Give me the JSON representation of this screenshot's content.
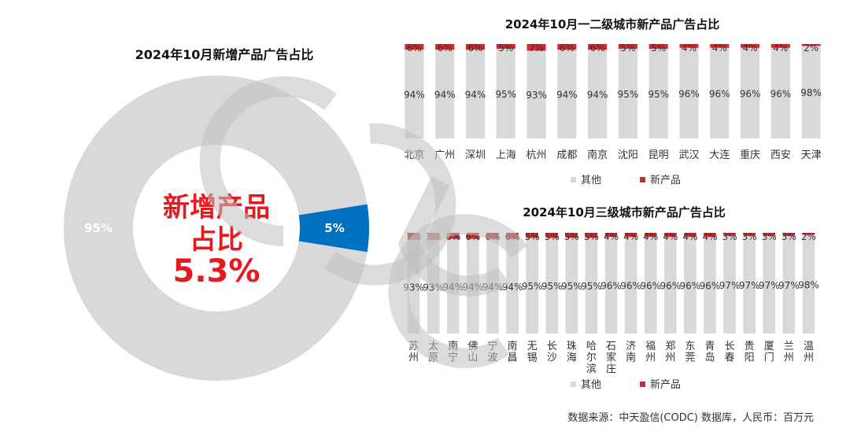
{
  "colors": {
    "other": "#d9d9d9",
    "new_product_bar": "#d9262c",
    "new_product_donut": "#0070c0",
    "center_text": "#e8181e",
    "title": "#111111",
    "label": "#333333",
    "donut_label_light": "#ffffff",
    "watermark": "#bfbfbf"
  },
  "watermark": {
    "text": "CODC"
  },
  "source": "数据来源：中天盈信(CODC) 数据库，人民币：百万元",
  "chart_data": [
    {
      "type": "pie",
      "title": "2024年10月新增产品广告占比",
      "center_text": {
        "line1": "新增产品",
        "line2": "占比",
        "value": "5.3%"
      },
      "categories": [
        "其他",
        "新产品"
      ],
      "values": [
        95,
        5
      ],
      "data_labels": [
        "95%",
        "5%"
      ]
    },
    {
      "type": "bar",
      "stacked": true,
      "title": "2024年10月一二级城市新产品广告占比",
      "categories": [
        "北京",
        "广州",
        "深圳",
        "上海",
        "杭州",
        "成都",
        "南京",
        "沈阳",
        "昆明",
        "武汉",
        "大连",
        "重庆",
        "西安",
        "天津"
      ],
      "series": [
        {
          "name": "其他",
          "values": [
            94,
            94,
            94,
            95,
            93,
            94,
            94,
            95,
            95,
            96,
            96,
            96,
            96,
            98
          ],
          "labels": [
            "94%",
            "94%",
            "94%",
            "95%",
            "93%",
            "94%",
            "94%",
            "95%",
            "95%",
            "96%",
            "96%",
            "96%",
            "96%",
            "98%"
          ]
        },
        {
          "name": "新产品",
          "values": [
            6,
            6,
            6,
            5,
            7,
            6,
            6,
            5,
            5,
            4,
            4,
            4,
            4,
            2
          ],
          "labels": [
            "6%",
            "6%",
            "6%",
            "5%",
            "7%",
            "6%",
            "6%",
            "5%",
            "5%",
            "4%",
            "4%",
            "4%",
            "4%",
            "2%"
          ]
        }
      ],
      "ylim": [
        0,
        100
      ],
      "legend_position": "bottom"
    },
    {
      "type": "bar",
      "stacked": true,
      "title": "2024年10月三级城市新产品广告占比",
      "categories": [
        "苏州",
        "太原",
        "南宁",
        "佛山",
        "宁波",
        "南昌",
        "无锡",
        "长沙",
        "珠海",
        "哈尔滨",
        "石家庄",
        "济南",
        "福州",
        "郑州",
        "东莞",
        "青岛",
        "长春",
        "贵阳",
        "厦门",
        "兰州",
        "温州"
      ],
      "series": [
        {
          "name": "其他",
          "values": [
            93,
            93,
            94,
            94,
            94,
            94,
            95,
            95,
            95,
            95,
            96,
            96,
            96,
            96,
            96,
            96,
            97,
            97,
            97,
            97,
            98
          ],
          "labels": [
            "93%",
            "93%",
            "94%",
            "94%",
            "94%",
            "94%",
            "95%",
            "95%",
            "95%",
            "95%",
            "96%",
            "96%",
            "96%",
            "96%",
            "96%",
            "96%",
            "97%",
            "97%",
            "97%",
            "97%",
            "98%"
          ]
        },
        {
          "name": "新产品",
          "values": [
            7,
            7,
            6,
            6,
            6,
            6,
            5,
            5,
            5,
            5,
            4,
            4,
            4,
            4,
            4,
            4,
            3,
            3,
            3,
            3,
            2
          ],
          "labels": [
            "7%",
            "7%",
            "6%",
            "6%",
            "6%",
            "6%",
            "5%",
            "5%",
            "5%",
            "5%",
            "4%",
            "4%",
            "4%",
            "4%",
            "4%",
            "4%",
            "3%",
            "3%",
            "3%",
            "3%",
            "2%"
          ]
        }
      ],
      "ylim": [
        0,
        100
      ],
      "legend_position": "bottom"
    }
  ]
}
